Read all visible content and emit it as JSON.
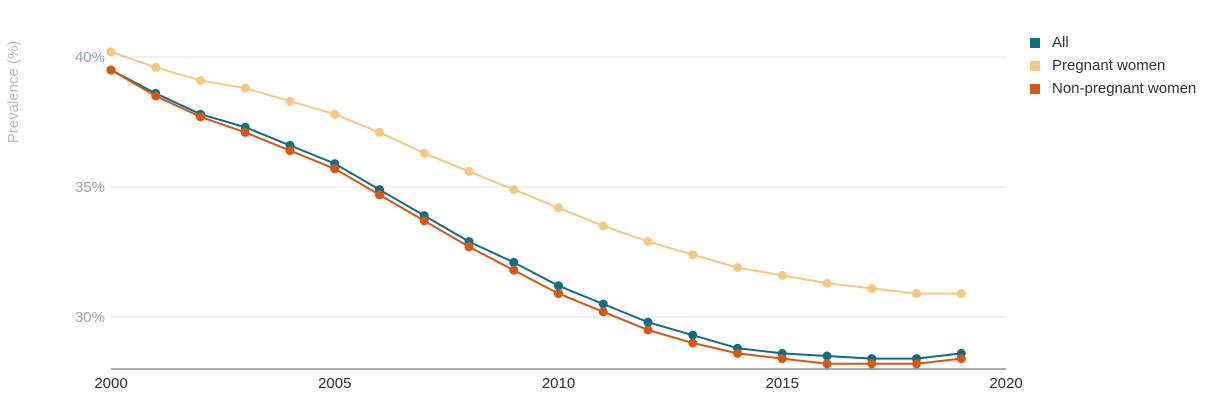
{
  "chart_data": {
    "type": "line",
    "ylabel": "Prevalence (%)",
    "xlim": [
      2000,
      2020
    ],
    "ylim": [
      28,
      41
    ],
    "x_ticks": [
      2000,
      2005,
      2010,
      2015,
      2020
    ],
    "y_ticks": [
      30,
      35,
      40
    ],
    "y_tick_labels": [
      "30%",
      "35%",
      "40%"
    ],
    "grid": true,
    "legend_position": "top-right",
    "x": [
      2000,
      2001,
      2002,
      2003,
      2004,
      2005,
      2006,
      2007,
      2008,
      2009,
      2010,
      2011,
      2012,
      2013,
      2014,
      2015,
      2016,
      2017,
      2018,
      2019
    ],
    "series": [
      {
        "name": "All",
        "color": "#0f6e87",
        "values": [
          39.5,
          38.6,
          37.8,
          37.3,
          36.6,
          35.9,
          34.9,
          33.9,
          32.9,
          32.1,
          31.2,
          30.5,
          29.8,
          29.3,
          28.8,
          28.6,
          28.5,
          28.4,
          28.4,
          28.6
        ]
      },
      {
        "name": "Pregnant women",
        "color": "#f9c77e",
        "values": [
          40.2,
          39.6,
          39.1,
          38.8,
          38.3,
          37.8,
          37.1,
          36.3,
          35.6,
          34.9,
          34.2,
          33.5,
          32.9,
          32.4,
          31.9,
          31.6,
          31.3,
          31.1,
          30.9,
          30.9
        ]
      },
      {
        "name": "Non-pregnant women",
        "color": "#d9560f",
        "values": [
          39.5,
          38.5,
          37.7,
          37.1,
          36.4,
          35.7,
          34.7,
          33.7,
          32.7,
          31.8,
          30.9,
          30.2,
          29.5,
          29.0,
          28.6,
          28.4,
          28.2,
          28.2,
          28.2,
          28.4
        ]
      }
    ]
  }
}
